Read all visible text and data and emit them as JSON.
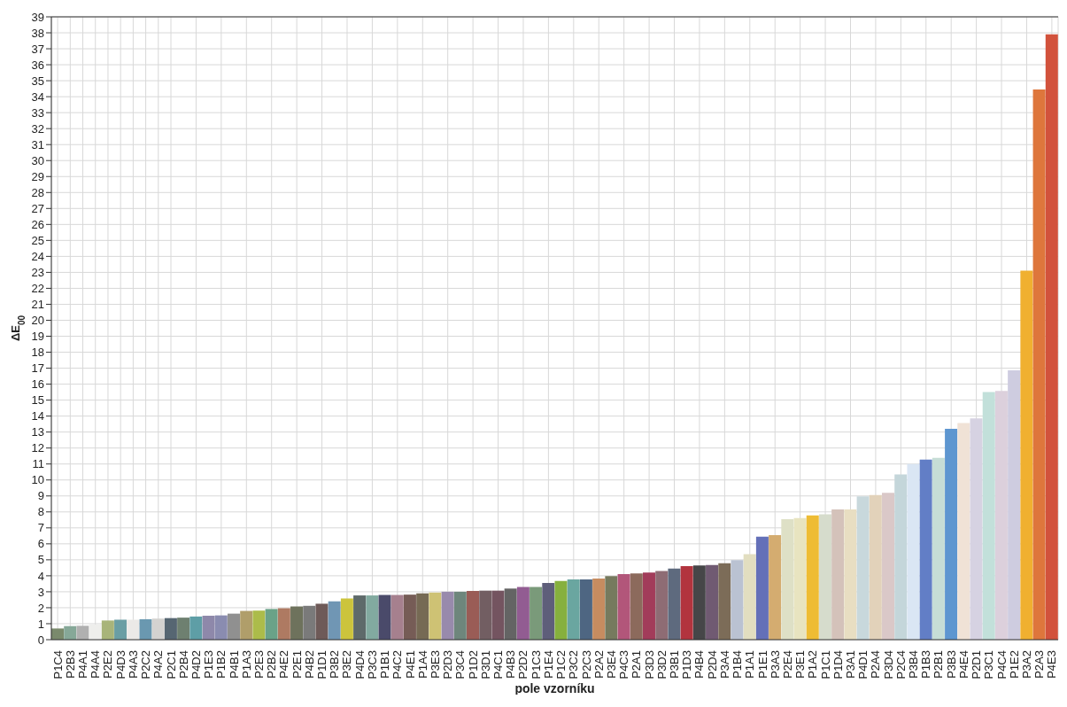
{
  "chart_data": {
    "type": "bar",
    "xlabel": "pole vzorníku",
    "ylabel": "ΔE$_{00}$",
    "categories": [
      "P1C4",
      "P2B3",
      "P4A1",
      "P4A4",
      "P2E2",
      "P4D3",
      "P4A3",
      "P2C2",
      "P4A2",
      "P2C1",
      "P2B4",
      "P4D2",
      "P1E3",
      "P1B2",
      "P4B1",
      "P1A3",
      "P2E3",
      "P2B2",
      "P4E2",
      "P2E1",
      "P4B2",
      "P1D1",
      "P3B2",
      "P3E2",
      "P4D4",
      "P3C3",
      "P1B1",
      "P4C2",
      "P4E1",
      "P1A4",
      "P3E3",
      "P2D3",
      "P3C4",
      "P1D2",
      "P3D1",
      "P4C1",
      "P4B3",
      "P2D2",
      "P1C3",
      "P1E4",
      "P1C2",
      "P3C2",
      "P2C3",
      "P2A2",
      "P3E4",
      "P4C3",
      "P2A1",
      "P3D3",
      "P3D2",
      "P3B1",
      "P1D3",
      "P4B4",
      "P2D4",
      "P3A4",
      "P1B4",
      "P1A1",
      "P1E1",
      "P3A3",
      "P2E4",
      "P3E1",
      "P1A2",
      "P1C1",
      "P1D4",
      "P3A1",
      "P4D1",
      "P2A4",
      "P3D4",
      "P2C4",
      "P3B4",
      "P1B3",
      "P2B1",
      "P3B3",
      "P4E4",
      "P2D1",
      "P3C1",
      "P4C4",
      "P1E2",
      "P3A2",
      "P2A3",
      "P4E3"
    ],
    "values": [
      0.7,
      0.85,
      0.87,
      0.95,
      1.2,
      1.25,
      1.25,
      1.28,
      1.32,
      1.35,
      1.38,
      1.45,
      1.5,
      1.52,
      1.63,
      1.8,
      1.82,
      1.92,
      1.97,
      2.08,
      2.12,
      2.25,
      2.4,
      2.58,
      2.77,
      2.77,
      2.8,
      2.8,
      2.82,
      2.9,
      2.95,
      3.0,
      3.0,
      3.05,
      3.07,
      3.07,
      3.2,
      3.3,
      3.3,
      3.55,
      3.68,
      3.77,
      3.77,
      3.83,
      3.98,
      4.1,
      4.15,
      4.2,
      4.3,
      4.45,
      4.6,
      4.65,
      4.67,
      4.78,
      4.98,
      5.35,
      6.45,
      6.55,
      7.55,
      7.62,
      7.78,
      7.85,
      8.15,
      8.15,
      8.98,
      9.05,
      9.2,
      10.35,
      11.0,
      11.27,
      11.38,
      13.2,
      13.57,
      13.85,
      15.5,
      15.57,
      16.87,
      23.1,
      34.45,
      37.9
    ],
    "colors": [
      "#7a8a6c",
      "#86a898",
      "#b0b0b0",
      "#eeeeec",
      "#a8b47a",
      "#6a9ea4",
      "#ebe9e7",
      "#6a98b0",
      "#d3d2d0",
      "#566672",
      "#6e8070",
      "#5e9ea6",
      "#8e88aa",
      "#8a8cb0",
      "#909090",
      "#b09e6a",
      "#acbc4a",
      "#6aa288",
      "#ae7a62",
      "#6e725c",
      "#7a7a7a",
      "#6e5a58",
      "#7096b4",
      "#ccc43c",
      "#5e6a6a",
      "#82aaa0",
      "#4a4a6a",
      "#a6808e",
      "#765c56",
      "#766a54",
      "#cec274",
      "#988aac",
      "#6e867c",
      "#9a5c56",
      "#725e62",
      "#745460",
      "#646464",
      "#925c92",
      "#7a9a7a",
      "#5e5e7a",
      "#86b03e",
      "#6aa6a0",
      "#4e6682",
      "#c68c60",
      "#767a5e",
      "#b2567a",
      "#8c6a5c",
      "#a23c5a",
      "#8e6c74",
      "#5e6a7e",
      "#b2343e",
      "#464648",
      "#705a72",
      "#7c6c58",
      "#bac2d2",
      "#e2dec0",
      "#6470b8",
      "#d4ac70",
      "#dee0c6",
      "#e8e4c0",
      "#eebc34",
      "#d6dccc",
      "#d4c2ba",
      "#e8dec2",
      "#c8d8dc",
      "#e2d2ba",
      "#dac8c8",
      "#c4d6da",
      "#dae6f4",
      "#627ec6",
      "#c6ddd6",
      "#5e96d0",
      "#f0e2d6",
      "#d6d2e2",
      "#c2e0da",
      "#dcd0dc",
      "#cecce0",
      "#f0b030",
      "#de763c",
      "#d2523c"
    ],
    "ylim": [
      0,
      39
    ],
    "yticks": [
      0,
      1,
      2,
      3,
      4,
      5,
      6,
      7,
      8,
      9,
      10,
      11,
      12,
      13,
      14,
      15,
      16,
      17,
      18,
      19,
      20,
      21,
      22,
      23,
      24,
      25,
      26,
      27,
      28,
      29,
      30,
      31,
      32,
      33,
      34,
      35,
      36,
      37,
      38,
      39
    ],
    "grid": true
  }
}
